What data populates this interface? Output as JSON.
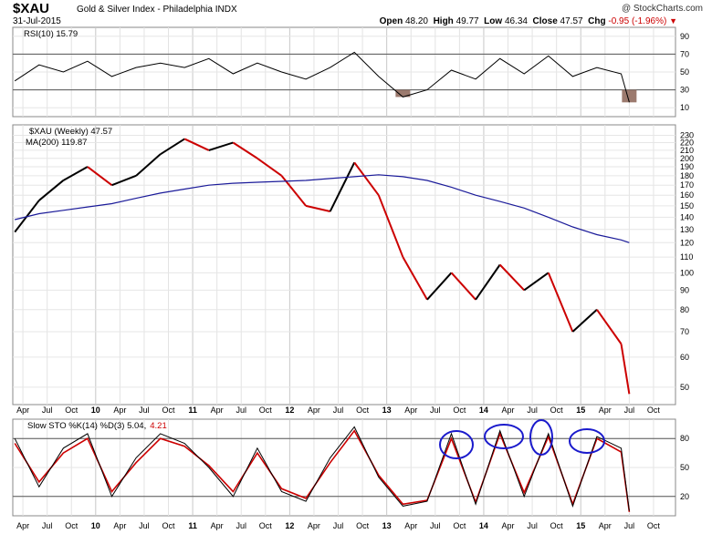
{
  "header": {
    "ticker": "$XAU",
    "name": "Gold & Silver Index - Philadelphia INDX",
    "date": "31-Jul-2015",
    "copyright": "@ StockCharts.com",
    "open_label": "Open",
    "open": "48.20",
    "high_label": "High",
    "high": "49.77",
    "low_label": "Low",
    "low": "46.34",
    "close_label": "Close",
    "close": "47.57",
    "chg_label": "Chg",
    "chg": "-0.95 (-1.96%)"
  },
  "colors": {
    "price_up": "#000000",
    "price_down": "#cc0000",
    "ma": "#1a1a99",
    "stoch_k": "#000000",
    "stoch_d": "#cc0000",
    "rsi_fill": "#8b6355",
    "circle": "#1a1acc"
  },
  "panels": {
    "rsi_label": "RSI(10) 15.79",
    "price_label": "$XAU (Weekly) 47.57",
    "ma_label": "MA(200) 119.87",
    "sto_label": "Slow STO %K(14) %D(3) 5.04,",
    "sto_d_value": "4.21"
  },
  "chart_data": [
    {
      "type": "line",
      "title": "RSI(10) 15.79",
      "ylim": [
        0,
        100
      ],
      "yticks": [
        10,
        30,
        50,
        70,
        90
      ],
      "reference_lines": [
        30,
        70
      ],
      "x": [
        "2009-03",
        "2009-06",
        "2009-09",
        "2009-12",
        "2010-03",
        "2010-06",
        "2010-09",
        "2010-12",
        "2011-03",
        "2011-06",
        "2011-09",
        "2011-12",
        "2012-03",
        "2012-06",
        "2012-09",
        "2012-12",
        "2013-03",
        "2013-06",
        "2013-09",
        "2013-12",
        "2014-03",
        "2014-06",
        "2014-09",
        "2014-12",
        "2015-03",
        "2015-06",
        "2015-07"
      ],
      "values": [
        40,
        58,
        50,
        62,
        45,
        55,
        60,
        55,
        65,
        48,
        60,
        50,
        42,
        55,
        72,
        45,
        22,
        30,
        52,
        42,
        65,
        48,
        68,
        45,
        55,
        48,
        16
      ]
    },
    {
      "type": "line",
      "title": "$XAU (Weekly) 47.57",
      "yscale": "log",
      "ylim": [
        45,
        245
      ],
      "yticks": [
        50,
        60,
        70,
        80,
        90,
        100,
        110,
        120,
        130,
        140,
        150,
        160,
        170,
        180,
        190,
        200,
        210,
        220,
        230
      ],
      "x": [
        "2009-03",
        "2009-06",
        "2009-09",
        "2009-12",
        "2010-03",
        "2010-06",
        "2010-09",
        "2010-12",
        "2011-03",
        "2011-06",
        "2011-09",
        "2011-12",
        "2012-03",
        "2012-06",
        "2012-09",
        "2012-12",
        "2013-03",
        "2013-06",
        "2013-09",
        "2013-12",
        "2014-03",
        "2014-06",
        "2014-09",
        "2014-12",
        "2015-03",
        "2015-06",
        "2015-07"
      ],
      "series": [
        {
          "name": "$XAU (Weekly) 47.57",
          "values": [
            128,
            155,
            175,
            190,
            170,
            180,
            205,
            225,
            210,
            220,
            200,
            180,
            150,
            145,
            195,
            160,
            110,
            85,
            100,
            85,
            105,
            90,
            100,
            70,
            80,
            65,
            48
          ]
        },
        {
          "name": "MA(200) 119.87",
          "values": [
            138,
            143,
            146,
            149,
            152,
            157,
            162,
            166,
            170,
            172,
            173,
            174,
            175,
            177,
            179,
            181,
            179,
            175,
            168,
            160,
            154,
            148,
            140,
            132,
            126,
            122,
            120
          ]
        }
      ]
    },
    {
      "type": "line",
      "title": "Slow STO %K(14) %D(3) 5.04, 4.21",
      "ylim": [
        0,
        100
      ],
      "yticks": [
        20,
        50,
        80
      ],
      "reference_lines": [
        20,
        80
      ],
      "x": [
        "2009-03",
        "2009-06",
        "2009-09",
        "2009-12",
        "2010-03",
        "2010-06",
        "2010-09",
        "2010-12",
        "2011-03",
        "2011-06",
        "2011-09",
        "2011-12",
        "2012-03",
        "2012-06",
        "2012-09",
        "2012-12",
        "2013-03",
        "2013-06",
        "2013-09",
        "2013-12",
        "2014-03",
        "2014-06",
        "2014-09",
        "2014-12",
        "2015-03",
        "2015-06",
        "2015-07"
      ],
      "series": [
        {
          "name": "%K(14)",
          "values": [
            80,
            30,
            70,
            85,
            20,
            60,
            85,
            75,
            50,
            20,
            70,
            25,
            15,
            60,
            92,
            40,
            10,
            15,
            85,
            12,
            88,
            20,
            85,
            10,
            82,
            70,
            5
          ]
        },
        {
          "name": "%D(3)",
          "values": [
            75,
            35,
            65,
            80,
            25,
            55,
            80,
            72,
            52,
            25,
            65,
            28,
            18,
            55,
            88,
            42,
            12,
            16,
            80,
            14,
            85,
            24,
            82,
            12,
            80,
            66,
            4
          ]
        }
      ]
    }
  ],
  "x_axis": {
    "labels": [
      {
        "t": "Apr",
        "m": 3
      },
      {
        "t": "Jul",
        "m": 6
      },
      {
        "t": "Oct",
        "m": 9
      },
      {
        "t": "10",
        "m": 12,
        "year": true
      },
      {
        "t": "Apr",
        "m": 15
      },
      {
        "t": "Jul",
        "m": 18
      },
      {
        "t": "Oct",
        "m": 21
      },
      {
        "t": "11",
        "m": 24,
        "year": true
      },
      {
        "t": "Apr",
        "m": 27
      },
      {
        "t": "Jul",
        "m": 30
      },
      {
        "t": "Oct",
        "m": 33
      },
      {
        "t": "12",
        "m": 36,
        "year": true
      },
      {
        "t": "Apr",
        "m": 39
      },
      {
        "t": "Jul",
        "m": 42
      },
      {
        "t": "Oct",
        "m": 45
      },
      {
        "t": "13",
        "m": 48,
        "year": true
      },
      {
        "t": "Apr",
        "m": 51
      },
      {
        "t": "Jul",
        "m": 54
      },
      {
        "t": "Oct",
        "m": 57
      },
      {
        "t": "14",
        "m": 60,
        "year": true
      },
      {
        "t": "Apr",
        "m": 63
      },
      {
        "t": "Jul",
        "m": 66
      },
      {
        "t": "Oct",
        "m": 69
      },
      {
        "t": "15",
        "m": 72,
        "year": true
      },
      {
        "t": "Apr",
        "m": 75
      },
      {
        "t": "Jul",
        "m": 78
      },
      {
        "t": "Oct",
        "m": 81
      }
    ]
  }
}
